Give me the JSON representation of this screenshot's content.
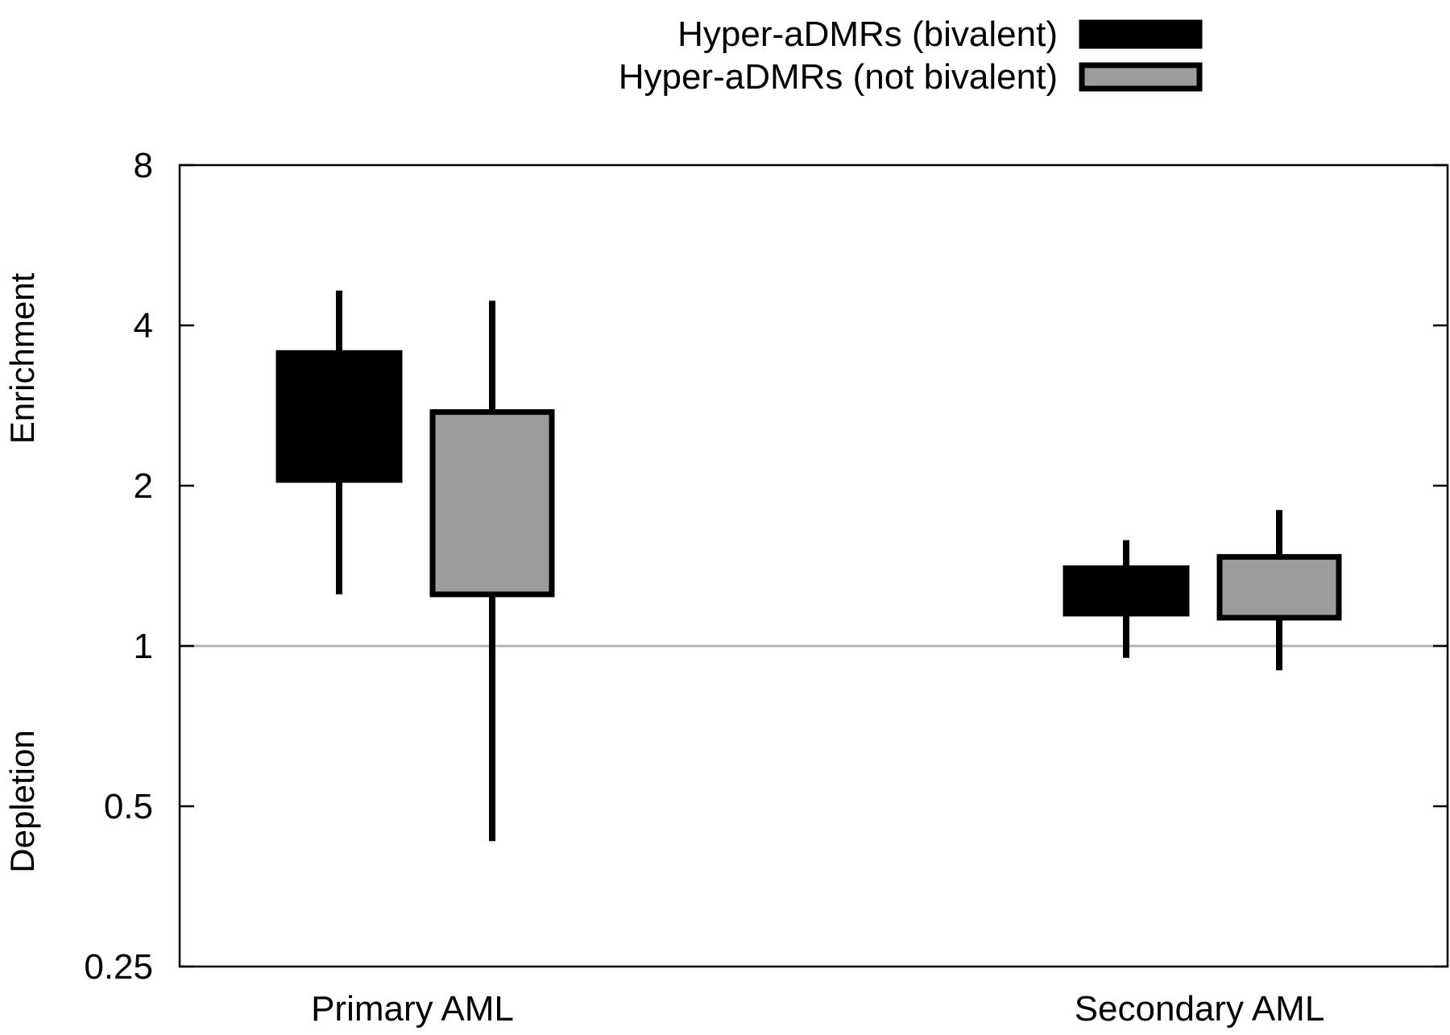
{
  "chart_data": {
    "type": "box",
    "y_scale": "log2",
    "ylim": [
      0.25,
      8
    ],
    "yticks": [
      {
        "value": 0.25,
        "label": "0.25"
      },
      {
        "value": 0.5,
        "label": "0.5"
      },
      {
        "value": 1,
        "label": "1"
      },
      {
        "value": 2,
        "label": "2"
      },
      {
        "value": 4,
        "label": "4"
      },
      {
        "value": 8,
        "label": "8"
      }
    ],
    "ylabel_upper": "Enrichment",
    "ylabel_lower": "Depletion",
    "reference_line": {
      "value": 1,
      "color": "#b3b3b3"
    },
    "categories": [
      "Primary AML",
      "Secondary AML"
    ],
    "series": [
      {
        "name": "Hyper-aDMRs (bivalent)",
        "color": "#000000",
        "boxes": [
          {
            "category": "Primary AML",
            "whisker_low": 1.25,
            "q1": 2.05,
            "q3": 3.55,
            "whisker_high": 4.65
          },
          {
            "category": "Secondary AML",
            "whisker_low": 0.95,
            "q1": 1.15,
            "q3": 1.4,
            "whisker_high": 1.58
          }
        ]
      },
      {
        "name": "Hyper-aDMRs (not bivalent)",
        "color": "#9c9c9c",
        "boxes": [
          {
            "category": "Primary AML",
            "whisker_low": 0.43,
            "q1": 1.25,
            "q3": 2.75,
            "whisker_high": 4.45
          },
          {
            "category": "Secondary AML",
            "whisker_low": 0.9,
            "q1": 1.13,
            "q3": 1.47,
            "whisker_high": 1.8
          }
        ]
      }
    ],
    "legend": {
      "position": "top-right"
    },
    "grid": false
  }
}
